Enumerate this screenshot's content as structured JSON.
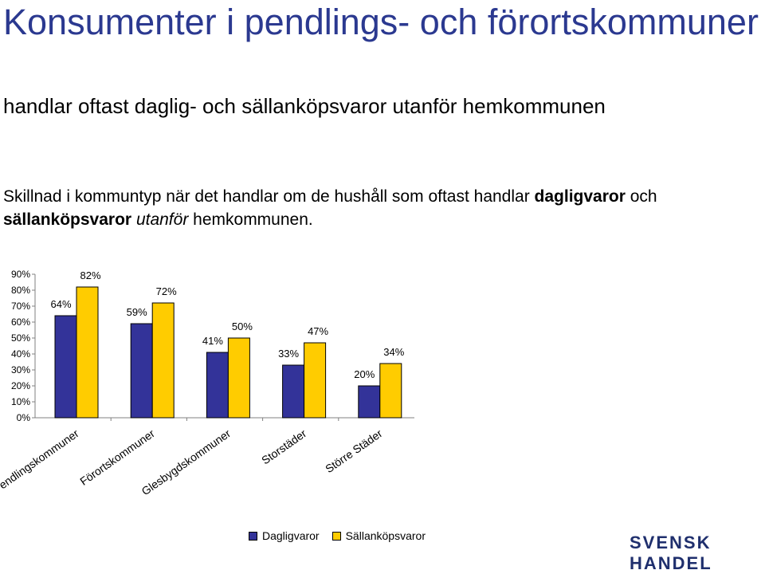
{
  "header": {
    "title": "Konsumenter i pendlings- och förortskommuner",
    "subtitle": "handlar oftast daglig- och sällanköpsvaror utanför hemkommunen"
  },
  "description": {
    "part1": "Skillnad i kommuntyp när det handlar om de hushåll som oftast handlar ",
    "bold1": "dagligvaror",
    "part2": " och ",
    "bold2": "sällanköpsvaror",
    "part3": " ",
    "italic": "utanför",
    "part4": " hemkommunen."
  },
  "logo": "SVENSK HANDEL",
  "chart_data": {
    "type": "bar",
    "categories": [
      "Pendlingskommuner",
      "Förortskommuner",
      "Glesbygdskommuner",
      "Storstäder",
      "Större Städer"
    ],
    "series": [
      {
        "name": "Dagligvaror",
        "values": [
          64,
          59,
          41,
          33,
          20
        ],
        "labels": [
          "64%",
          "59%",
          "41%",
          "33%",
          "20%"
        ],
        "color": "#333399"
      },
      {
        "name": "Sällanköpsvaror",
        "values": [
          82,
          72,
          50,
          47,
          34
        ],
        "labels": [
          "82%",
          "72%",
          "50%",
          "47%",
          "34%"
        ],
        "color": "#ffcc00"
      }
    ],
    "ylim": [
      0,
      90
    ],
    "yticks": [
      "0%",
      "10%",
      "20%",
      "30%",
      "40%",
      "50%",
      "60%",
      "70%",
      "80%",
      "90%"
    ],
    "grid": false,
    "legend": "bottom"
  }
}
